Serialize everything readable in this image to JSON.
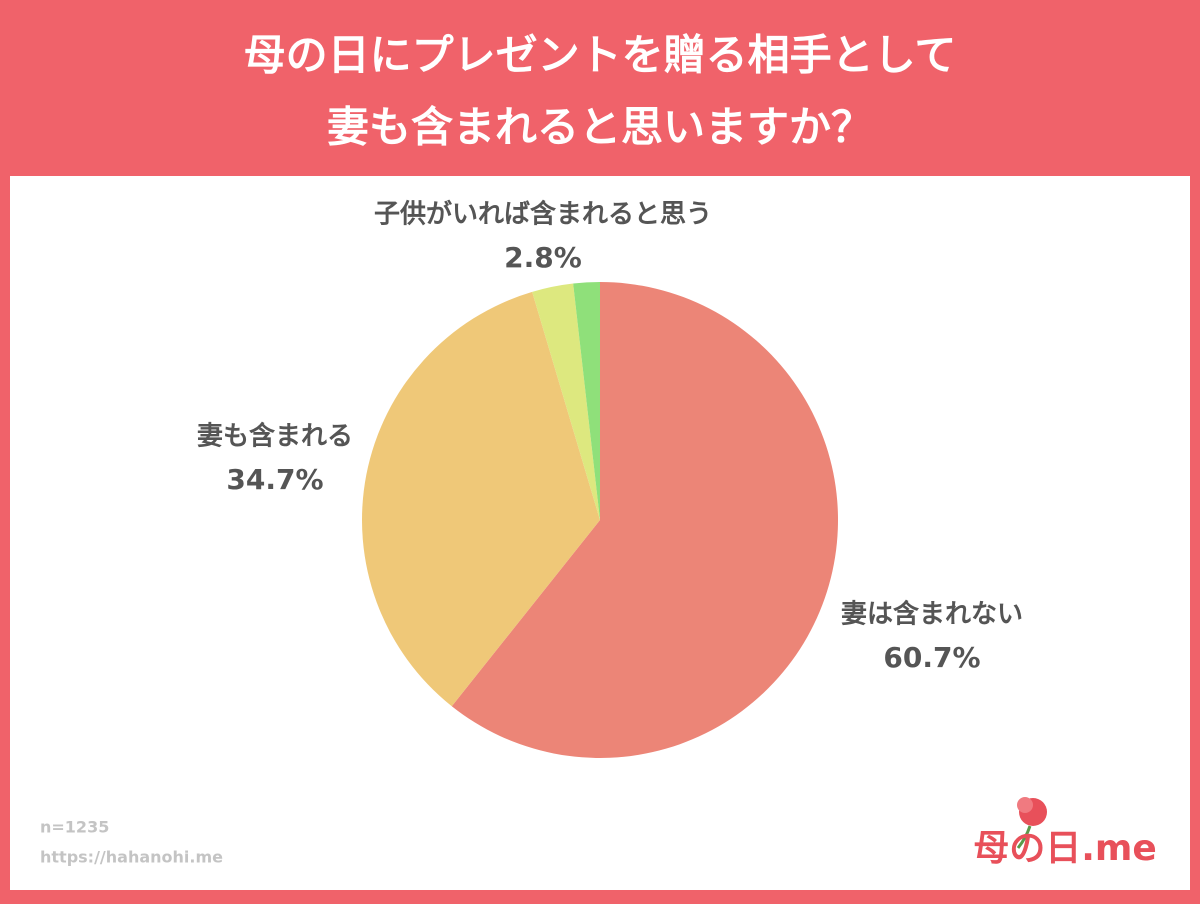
{
  "chart_data": {
    "type": "pie",
    "title": [
      "母の日にプレゼントを贈る相手として",
      "妻も含まれると思いますか？"
    ],
    "categories": [
      "妻は含まれない",
      "妻も含まれる",
      "子供がいれば含まれると思う",
      null
    ],
    "values": [
      60.7,
      34.7,
      2.8,
      1.8
    ],
    "value_labels": [
      "60.7%",
      "34.7%",
      "2.8%",
      null
    ],
    "colors": [
      "#ec8577",
      "#efc878",
      "#dde87f",
      "#8fe07a"
    ],
    "sample_note": "n=1235",
    "source": "https://hahanohi.me",
    "logo": "母の日.me"
  }
}
